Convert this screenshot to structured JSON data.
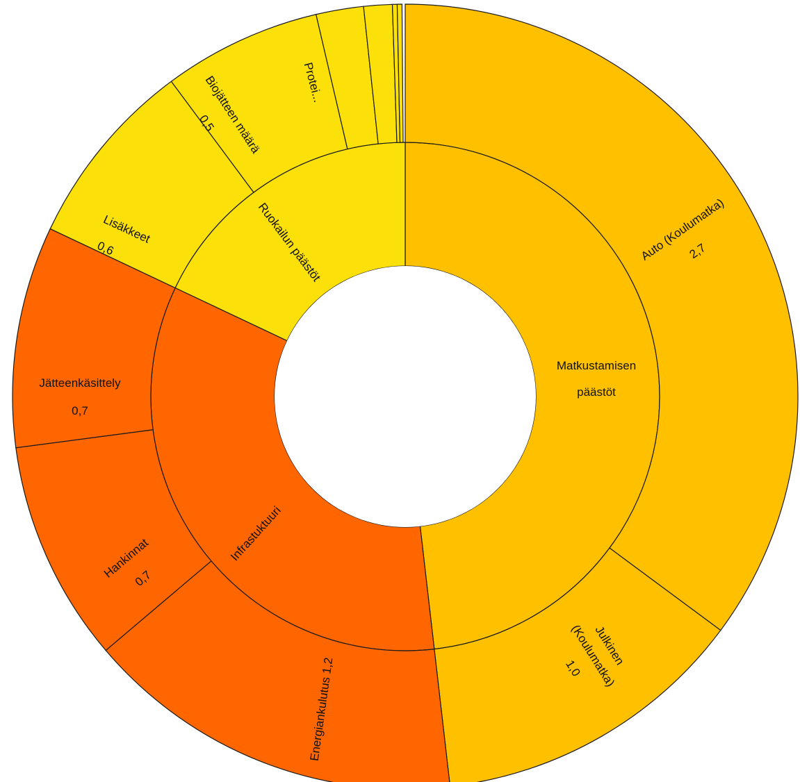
{
  "chart_data": {
    "type": "sunburst",
    "title": "",
    "inner": [
      {
        "name": "Matkustamisen päästöt",
        "value": 3.7,
        "color": "#FFC000"
      },
      {
        "name": "Infrastuktuuri",
        "value": 2.6,
        "color": "#FF6600"
      },
      {
        "name": "Ruokailun päästöt",
        "value": 1.38,
        "color": "#FCE00A"
      }
    ],
    "outer": [
      {
        "name": "Auto (Koulumatka)",
        "value": 2.7,
        "value_label": "2,7",
        "parent": "Matkustamisen päästöt",
        "color": "#FFC000"
      },
      {
        "name": "Julkinen (Koulumatka)",
        "value": 1.0,
        "value_label": "1,0",
        "parent": "Matkustamisen päästöt",
        "color": "#FFC000"
      },
      {
        "name": "Energiankulutus",
        "value": 1.2,
        "value_label": "1,2",
        "parent": "Infrastuktuuri",
        "color": "#FF6600"
      },
      {
        "name": "Hankinnat",
        "value": 0.7,
        "value_label": "0,7",
        "parent": "Infrastuktuuri",
        "color": "#FF6600"
      },
      {
        "name": "Jätteenkäsittely",
        "value": 0.7,
        "value_label": "0,7",
        "parent": "Infrastuktuuri",
        "color": "#FF6600"
      },
      {
        "name": "Lisäkkeet",
        "value": 0.6,
        "value_label": "0,6",
        "parent": "Ruokailun päästöt",
        "color": "#FCE00A"
      },
      {
        "name": "Biojätteen määrä",
        "value": 0.5,
        "value_label": "0,5",
        "parent": "Ruokailun päästöt",
        "color": "#FCE00A"
      },
      {
        "name": "Protei...",
        "value": 0.15,
        "value_label": "",
        "parent": "Ruokailun päästöt",
        "color": "#FCE00A"
      },
      {
        "name": "",
        "value": 0.09,
        "value_label": "",
        "parent": "Ruokailun päästöt",
        "color": "#FCE00A"
      },
      {
        "name": "",
        "value": 0.015,
        "value_label": "",
        "parent": "Ruokailun päästöt",
        "color": "#FCE00A"
      },
      {
        "name": "",
        "value": 0.015,
        "value_label": "",
        "parent": "Ruokailun päästöt",
        "color": "#FCE00A"
      }
    ],
    "legend": "none"
  }
}
